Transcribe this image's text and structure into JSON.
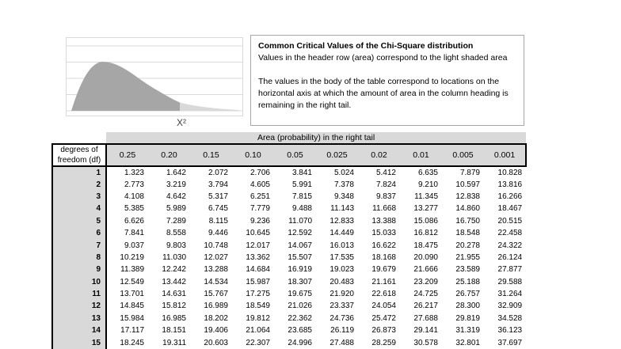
{
  "chart": {
    "xlabel": "Χ²",
    "curve_color": "#a6a6a6",
    "tail_color": "#d9d9d9",
    "gridline_color": "#d9d9d9"
  },
  "textbox": {
    "title": "Common Critical Values of the Chi-Square distribution",
    "subtitle": "Values in the header row (area) correspond to the light shaded area",
    "para": [
      "The values in the body of the table correspond to locations on the",
      "horizontal axis at which the amount of area in the column heading is",
      "remaining in the right tail."
    ]
  },
  "table": {
    "area_header": "Area (probability) in the right tail",
    "df_header": [
      "degrees of",
      "freedom (df)"
    ],
    "columns": [
      "0.25",
      "0.20",
      "0.15",
      "0.10",
      "0.05",
      "0.025",
      "0.02",
      "0.01",
      "0.005",
      "0.001"
    ],
    "rows": [
      {
        "df": "1",
        "values": [
          "1.323",
          "1.642",
          "2.072",
          "2.706",
          "3.841",
          "5.024",
          "5.412",
          "6.635",
          "7.879",
          "10.828"
        ]
      },
      {
        "df": "2",
        "values": [
          "2.773",
          "3.219",
          "3.794",
          "4.605",
          "5.991",
          "7.378",
          "7.824",
          "9.210",
          "10.597",
          "13.816"
        ]
      },
      {
        "df": "3",
        "values": [
          "4.108",
          "4.642",
          "5.317",
          "6.251",
          "7.815",
          "9.348",
          "9.837",
          "11.345",
          "12.838",
          "16.266"
        ]
      },
      {
        "df": "4",
        "values": [
          "5.385",
          "5.989",
          "6.745",
          "7.779",
          "9.488",
          "11.143",
          "11.668",
          "13.277",
          "14.860",
          "18.467"
        ]
      },
      {
        "df": "5",
        "values": [
          "6.626",
          "7.289",
          "8.115",
          "9.236",
          "11.070",
          "12.833",
          "13.388",
          "15.086",
          "16.750",
          "20.515"
        ]
      },
      {
        "df": "6",
        "values": [
          "7.841",
          "8.558",
          "9.446",
          "10.645",
          "12.592",
          "14.449",
          "15.033",
          "16.812",
          "18.548",
          "22.458"
        ]
      },
      {
        "df": "7",
        "values": [
          "9.037",
          "9.803",
          "10.748",
          "12.017",
          "14.067",
          "16.013",
          "16.622",
          "18.475",
          "20.278",
          "24.322"
        ]
      },
      {
        "df": "8",
        "values": [
          "10.219",
          "11.030",
          "12.027",
          "13.362",
          "15.507",
          "17.535",
          "18.168",
          "20.090",
          "21.955",
          "26.124"
        ]
      },
      {
        "df": "9",
        "values": [
          "11.389",
          "12.242",
          "13.288",
          "14.684",
          "16.919",
          "19.023",
          "19.679",
          "21.666",
          "23.589",
          "27.877"
        ]
      },
      {
        "df": "10",
        "values": [
          "12.549",
          "13.442",
          "14.534",
          "15.987",
          "18.307",
          "20.483",
          "21.161",
          "23.209",
          "25.188",
          "29.588"
        ]
      },
      {
        "df": "11",
        "values": [
          "13.701",
          "14.631",
          "15.767",
          "17.275",
          "19.675",
          "21.920",
          "22.618",
          "24.725",
          "26.757",
          "31.264"
        ]
      },
      {
        "df": "12",
        "values": [
          "14.845",
          "15.812",
          "16.989",
          "18.549",
          "21.026",
          "23.337",
          "24.054",
          "26.217",
          "28.300",
          "32.909"
        ]
      },
      {
        "df": "13",
        "values": [
          "15.984",
          "16.985",
          "18.202",
          "19.812",
          "22.362",
          "24.736",
          "25.472",
          "27.688",
          "29.819",
          "34.528"
        ]
      },
      {
        "df": "14",
        "values": [
          "17.117",
          "18.151",
          "19.406",
          "21.064",
          "23.685",
          "26.119",
          "26.873",
          "29.141",
          "31.319",
          "36.123"
        ]
      },
      {
        "df": "15",
        "values": [
          "18.245",
          "19.311",
          "20.603",
          "22.307",
          "24.996",
          "27.488",
          "28.259",
          "30.578",
          "32.801",
          "37.697"
        ]
      }
    ]
  },
  "colors": {
    "band_gray": "#d9d9d9",
    "curve_dark_gray": "#a6a6a6",
    "tail_light_gray": "#d9d9d9",
    "border_black": "#000000"
  }
}
